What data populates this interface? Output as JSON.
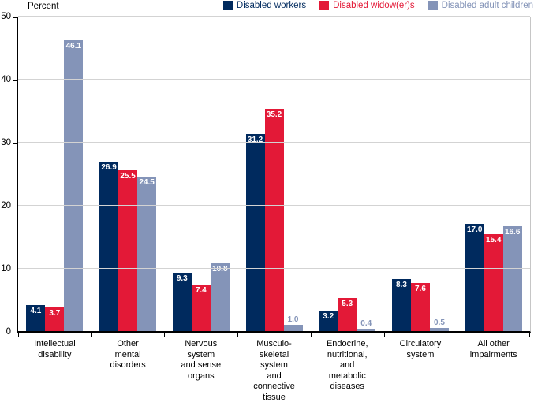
{
  "chart_data": {
    "type": "bar",
    "title": "",
    "ylabel": "Percent",
    "xlabel": "",
    "ylim": [
      0,
      50
    ],
    "yticks": [
      0,
      10,
      20,
      30,
      40,
      50
    ],
    "grid": "horizontal",
    "gridline_color": "#d3d3d3",
    "legend_position": "top-right",
    "value_labels": "each bar labeled; labels shown in white inside bar top, or in series color above bar when bar is too short",
    "categories": [
      "Intellectual\ndisability",
      "Other\nmental\ndisorders",
      "Nervous\nsystem\nand sense\norgans",
      "Musculo-\nskeletal\nsystem\nand\nconnective\ntissue",
      "Endocrine,\nnutritional,\nand\nmetabolic\ndiseases",
      "Circulatory\nsystem",
      "All other\nimpairments"
    ],
    "series": [
      {
        "name": "Disabled workers",
        "color": "#002a5e",
        "values": [
          4.1,
          26.9,
          9.3,
          31.2,
          3.2,
          8.3,
          17.0
        ]
      },
      {
        "name": "Disabled widow(er)s",
        "color": "#e31937",
        "values": [
          3.7,
          25.5,
          7.4,
          35.2,
          5.3,
          7.6,
          15.4
        ]
      },
      {
        "name": "Disabled adult children",
        "color": "#8494b8",
        "values": [
          46.1,
          24.5,
          10.8,
          1.0,
          0.4,
          0.5,
          16.6
        ]
      }
    ]
  }
}
